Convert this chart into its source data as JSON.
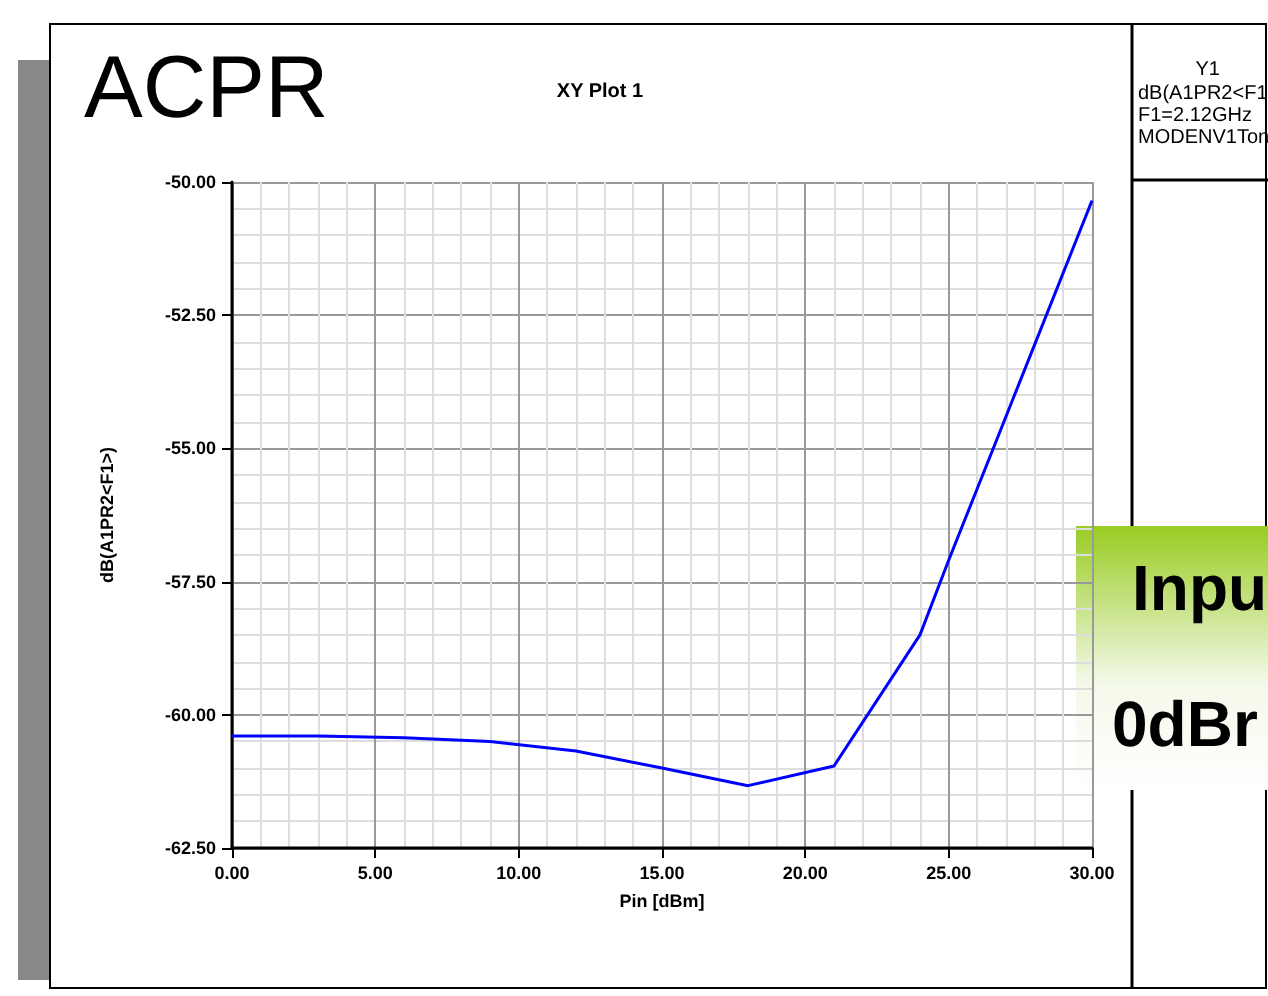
{
  "chart_data": {
    "type": "line",
    "title": "XY Plot 1",
    "xlabel": "Pin [dBm]",
    "ylabel": "dB(A1PR2<F1>)",
    "annotations": [
      "ACPR",
      "Y1",
      "dB(A1PR2<F1",
      "F1=2.12GHz",
      "MODENV1Ton",
      "Inpu",
      "0dBr"
    ],
    "x": [
      0,
      3,
      6,
      9,
      12,
      15,
      18,
      21,
      24,
      25,
      27,
      30
    ],
    "series": [
      {
        "color": "#0000ff",
        "values": [
          -60.4,
          -60.4,
          -60.43,
          -60.5,
          -60.68,
          -61.0,
          -61.33,
          -60.96,
          -58.5,
          -57.1,
          -54.4,
          -50.35
        ]
      }
    ],
    "xlim": [
      0,
      30
    ],
    "ylim": [
      -62.5,
      -50
    ],
    "xticks": [
      {
        "value": 0,
        "label": "0.00"
      },
      {
        "value": 5,
        "label": "5.00"
      },
      {
        "value": 10,
        "label": "10.00"
      },
      {
        "value": 15,
        "label": "15.00"
      },
      {
        "value": 20,
        "label": "20.00"
      },
      {
        "value": 25,
        "label": "25.00"
      },
      {
        "value": 30,
        "label": "30.00"
      }
    ],
    "yticks": [
      {
        "value": -62.5,
        "label": "-62.50"
      },
      {
        "value": -60,
        "label": "-60.00"
      },
      {
        "value": -57.5,
        "label": "-57.50"
      },
      {
        "value": -55,
        "label": "-55.00"
      },
      {
        "value": -52.5,
        "label": "-52.50"
      },
      {
        "value": -50,
        "label": "-50.00"
      }
    ],
    "grid": true,
    "marker": "none",
    "line_style": "solid"
  }
}
